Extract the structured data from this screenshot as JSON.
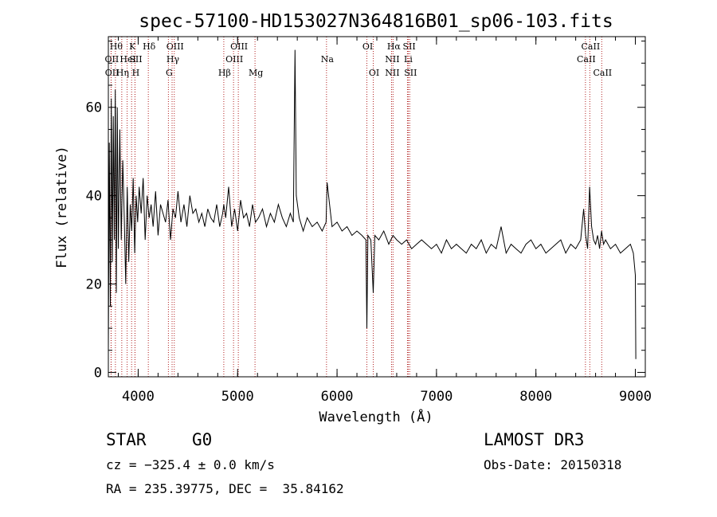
{
  "chart_data": {
    "type": "line",
    "title": "spec-57100-HD153027N364816B01_sp06-103.fits",
    "xlabel": "Wavelength (Å)",
    "ylabel": "Flux (relative)",
    "xlim": [
      3700,
      9100
    ],
    "ylim": [
      -1,
      76
    ],
    "xticks": [
      4000,
      5000,
      6000,
      7000,
      8000,
      9000
    ],
    "yticks": [
      0,
      20,
      40,
      60
    ],
    "series": [
      {
        "name": "flux",
        "x": [
          3700,
          3710,
          3720,
          3730,
          3740,
          3750,
          3760,
          3770,
          3780,
          3790,
          3800,
          3815,
          3830,
          3845,
          3860,
          3875,
          3890,
          3905,
          3920,
          3935,
          3950,
          3965,
          3980,
          3995,
          4010,
          4030,
          4050,
          4070,
          4090,
          4110,
          4130,
          4150,
          4175,
          4200,
          4225,
          4250,
          4275,
          4300,
          4325,
          4350,
          4375,
          4400,
          4430,
          4460,
          4490,
          4520,
          4550,
          4580,
          4610,
          4640,
          4670,
          4700,
          4730,
          4760,
          4790,
          4820,
          4850,
          4861,
          4880,
          4910,
          4940,
          4970,
          5000,
          5030,
          5060,
          5090,
          5120,
          5150,
          5180,
          5210,
          5250,
          5290,
          5330,
          5370,
          5410,
          5450,
          5490,
          5530,
          5560,
          5577,
          5590,
          5620,
          5660,
          5700,
          5750,
          5800,
          5850,
          5890,
          5900,
          5950,
          6000,
          6050,
          6100,
          6150,
          6200,
          6250,
          6290,
          6300,
          6310,
          6340,
          6364,
          6380,
          6420,
          6470,
          6520,
          6563,
          6600,
          6650,
          6700,
          6750,
          6800,
          6850,
          6900,
          6950,
          7000,
          7050,
          7100,
          7150,
          7200,
          7250,
          7300,
          7350,
          7400,
          7450,
          7500,
          7550,
          7600,
          7650,
          7700,
          7750,
          7800,
          7850,
          7900,
          7950,
          8000,
          8050,
          8100,
          8150,
          8200,
          8250,
          8300,
          8350,
          8400,
          8450,
          8480,
          8500,
          8520,
          8540,
          8560,
          8580,
          8600,
          8620,
          8640,
          8660,
          8680,
          8700,
          8750,
          8800,
          8850,
          8900,
          8950,
          8980,
          9000,
          9005
        ],
        "values": [
          5,
          52,
          15,
          62,
          25,
          58,
          30,
          64,
          18,
          60,
          28,
          55,
          30,
          48,
          35,
          20,
          42,
          25,
          38,
          32,
          44,
          27,
          40,
          34,
          42,
          36,
          44,
          30,
          40,
          35,
          38,
          33,
          41,
          31,
          38,
          36,
          34,
          39,
          30,
          37,
          35,
          41,
          34,
          38,
          33,
          40,
          36,
          37,
          34,
          36,
          33,
          37,
          35,
          34,
          38,
          33,
          36,
          38,
          35,
          42,
          33,
          37,
          32,
          39,
          35,
          36,
          33,
          38,
          34,
          35,
          37,
          33,
          36,
          34,
          38,
          35,
          33,
          36,
          34,
          73,
          40,
          35,
          32,
          35,
          33,
          34,
          32,
          34,
          43,
          33,
          34,
          32,
          33,
          31,
          32,
          31,
          30,
          10,
          31,
          30,
          18,
          31,
          30,
          32,
          29,
          31,
          30,
          29,
          30,
          28,
          29,
          30,
          29,
          28,
          29,
          27,
          30,
          28,
          29,
          28,
          27,
          29,
          28,
          30,
          27,
          29,
          28,
          33,
          27,
          29,
          28,
          27,
          29,
          30,
          28,
          29,
          27,
          28,
          29,
          30,
          27,
          29,
          28,
          30,
          37,
          31,
          28,
          42,
          33,
          30,
          29,
          31,
          28,
          32,
          29,
          30,
          28,
          29,
          27,
          28,
          29,
          27,
          22,
          3
        ]
      }
    ],
    "line_markers": [
      {
        "label": "OII",
        "x": 3727,
        "row": 1
      },
      {
        "label": "OII",
        "x": 3729,
        "row": 2
      },
      {
        "label": "Hθ",
        "x": 3771,
        "row": 0
      },
      {
        "label": "Hη",
        "x": 3835,
        "row": 2
      },
      {
        "label": "HeI",
        "x": 3889,
        "row": 1
      },
      {
        "label": "K",
        "x": 3934,
        "row": 0
      },
      {
        "label": "SII",
        "x": 3968,
        "row": 1
      },
      {
        "label": "H",
        "x": 3968,
        "row": 2
      },
      {
        "label": "Hδ",
        "x": 4102,
        "row": 0
      },
      {
        "label": "G",
        "x": 4304,
        "row": 2
      },
      {
        "label": "OIII",
        "x": 4363,
        "row": 0
      },
      {
        "label": "Hγ",
        "x": 4341,
        "row": 1
      },
      {
        "label": "Hβ",
        "x": 4861,
        "row": 2
      },
      {
        "label": "OIII",
        "x": 4959,
        "row": 1
      },
      {
        "label": "OIII",
        "x": 5007,
        "row": 0
      },
      {
        "label": "Mg",
        "x": 5175,
        "row": 2
      },
      {
        "label": "Na",
        "x": 5894,
        "row": 1
      },
      {
        "label": "OI",
        "x": 6300,
        "row": 0
      },
      {
        "label": "OI",
        "x": 6364,
        "row": 2
      },
      {
        "label": "NII",
        "x": 6548,
        "row": 1
      },
      {
        "label": "NII",
        "x": 6548,
        "row": 2
      },
      {
        "label": "Hα",
        "x": 6563,
        "row": 0
      },
      {
        "label": "SII",
        "x": 6717,
        "row": 0
      },
      {
        "label": "Li",
        "x": 6708,
        "row": 1
      },
      {
        "label": "SII",
        "x": 6731,
        "row": 2
      },
      {
        "label": "CaII",
        "x": 8498,
        "row": 1
      },
      {
        "label": "CaII",
        "x": 8542,
        "row": 0
      },
      {
        "label": "CaII",
        "x": 8662,
        "row": 2
      }
    ]
  },
  "info": {
    "object_class": "STAR",
    "subclass": "G0",
    "survey": "LAMOST DR3",
    "cz": "cz = −325.4 ± 0.0 km/s",
    "obs_date": "Obs-Date: 20150318",
    "coords": "RA = 235.39775, DEC =  35.84162"
  }
}
